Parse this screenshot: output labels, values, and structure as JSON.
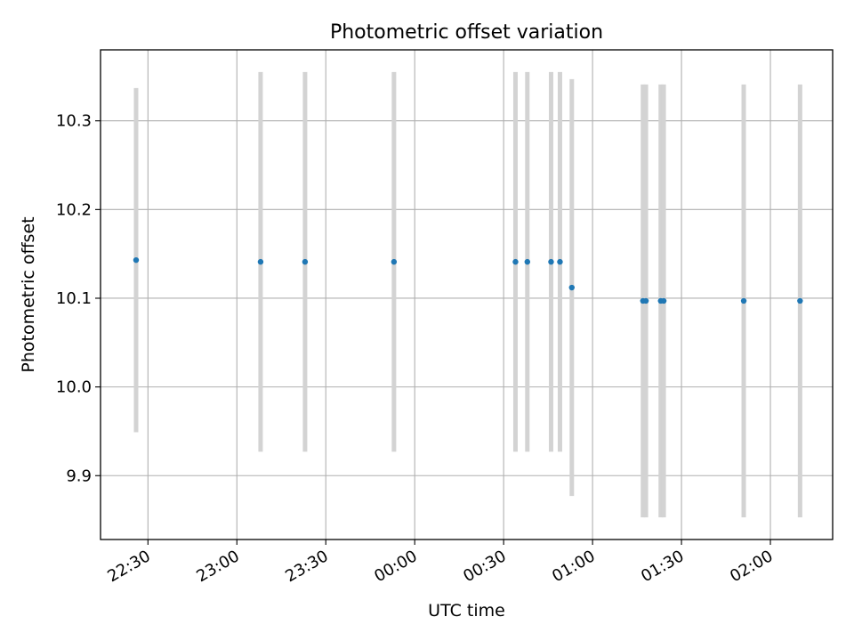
{
  "chart_data": {
    "type": "scatter",
    "title": "Photometric offset variation",
    "xlabel": "UTC time",
    "ylabel": "Photometric offset",
    "grid": true,
    "x_tick_rotation_deg": 30,
    "xlim": [
      "22:14",
      "02:21"
    ],
    "ylim": [
      9.828,
      10.38
    ],
    "x_ticks": [
      "22:30",
      "23:00",
      "23:30",
      "00:00",
      "00:30",
      "01:00",
      "01:30",
      "02:00"
    ],
    "y_ticks": [
      9.9,
      10.0,
      10.1,
      10.2,
      10.3
    ],
    "y_tick_labels": [
      "9.9",
      "10.0",
      "10.1",
      "10.2",
      "10.3"
    ],
    "point_color": "#1f77b4",
    "errorbar_color": "#d3d3d3",
    "points": [
      {
        "time": "22:26",
        "y": 10.143,
        "err": 0.194
      },
      {
        "time": "23:08",
        "y": 10.141,
        "err": 0.214
      },
      {
        "time": "23:23",
        "y": 10.141,
        "err": 0.214
      },
      {
        "time": "23:53",
        "y": 10.141,
        "err": 0.214
      },
      {
        "time": "00:34",
        "y": 10.141,
        "err": 0.214
      },
      {
        "time": "00:38",
        "y": 10.141,
        "err": 0.214
      },
      {
        "time": "00:46",
        "y": 10.141,
        "err": 0.214
      },
      {
        "time": "00:49",
        "y": 10.141,
        "err": 0.214
      },
      {
        "time": "00:53",
        "y": 10.112,
        "err": 0.235
      },
      {
        "time": "01:17",
        "y": 10.097,
        "err": 0.244
      },
      {
        "time": "01:18",
        "y": 10.097,
        "err": 0.244
      },
      {
        "time": "01:23",
        "y": 10.097,
        "err": 0.244
      },
      {
        "time": "01:24",
        "y": 10.097,
        "err": 0.244
      },
      {
        "time": "01:51",
        "y": 10.097,
        "err": 0.244
      },
      {
        "time": "02:10",
        "y": 10.097,
        "err": 0.244
      }
    ]
  }
}
